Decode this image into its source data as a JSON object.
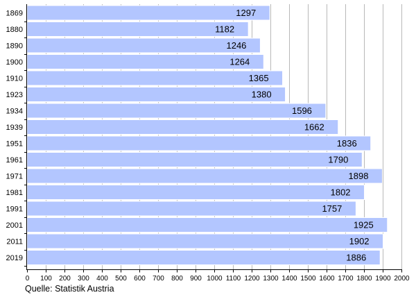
{
  "chart_data": {
    "type": "bar",
    "orientation": "horizontal",
    "categories": [
      "1869",
      "1880",
      "1890",
      "1900",
      "1910",
      "1923",
      "1934",
      "1939",
      "1951",
      "1961",
      "1971",
      "1981",
      "1991",
      "2001",
      "2011",
      "2019"
    ],
    "values": [
      1297,
      1182,
      1246,
      1264,
      1365,
      1380,
      1596,
      1662,
      1836,
      1790,
      1898,
      1802,
      1757,
      1925,
      1902,
      1886
    ],
    "value_labels": [
      "1297",
      "1182",
      "1246",
      "1264",
      "1365",
      "1380",
      "1596",
      "1662",
      "1836",
      "1790",
      "1898",
      "1802",
      "1757",
      "1925",
      "1902",
      "1886"
    ],
    "x_ticks": [
      "0",
      "100",
      "200",
      "300",
      "400",
      "500",
      "600",
      "700",
      "800",
      "900",
      "1000",
      "1100",
      "1200",
      "1300",
      "1400",
      "1500",
      "1600",
      "1700",
      "1800",
      "1900",
      "2000"
    ],
    "xlim": [
      0,
      2000
    ],
    "grid": "vertical",
    "title": "",
    "xlabel": "",
    "ylabel": "",
    "bar_color": "#b3c6ff",
    "source_note": "Quelle: Statistik Austria"
  }
}
